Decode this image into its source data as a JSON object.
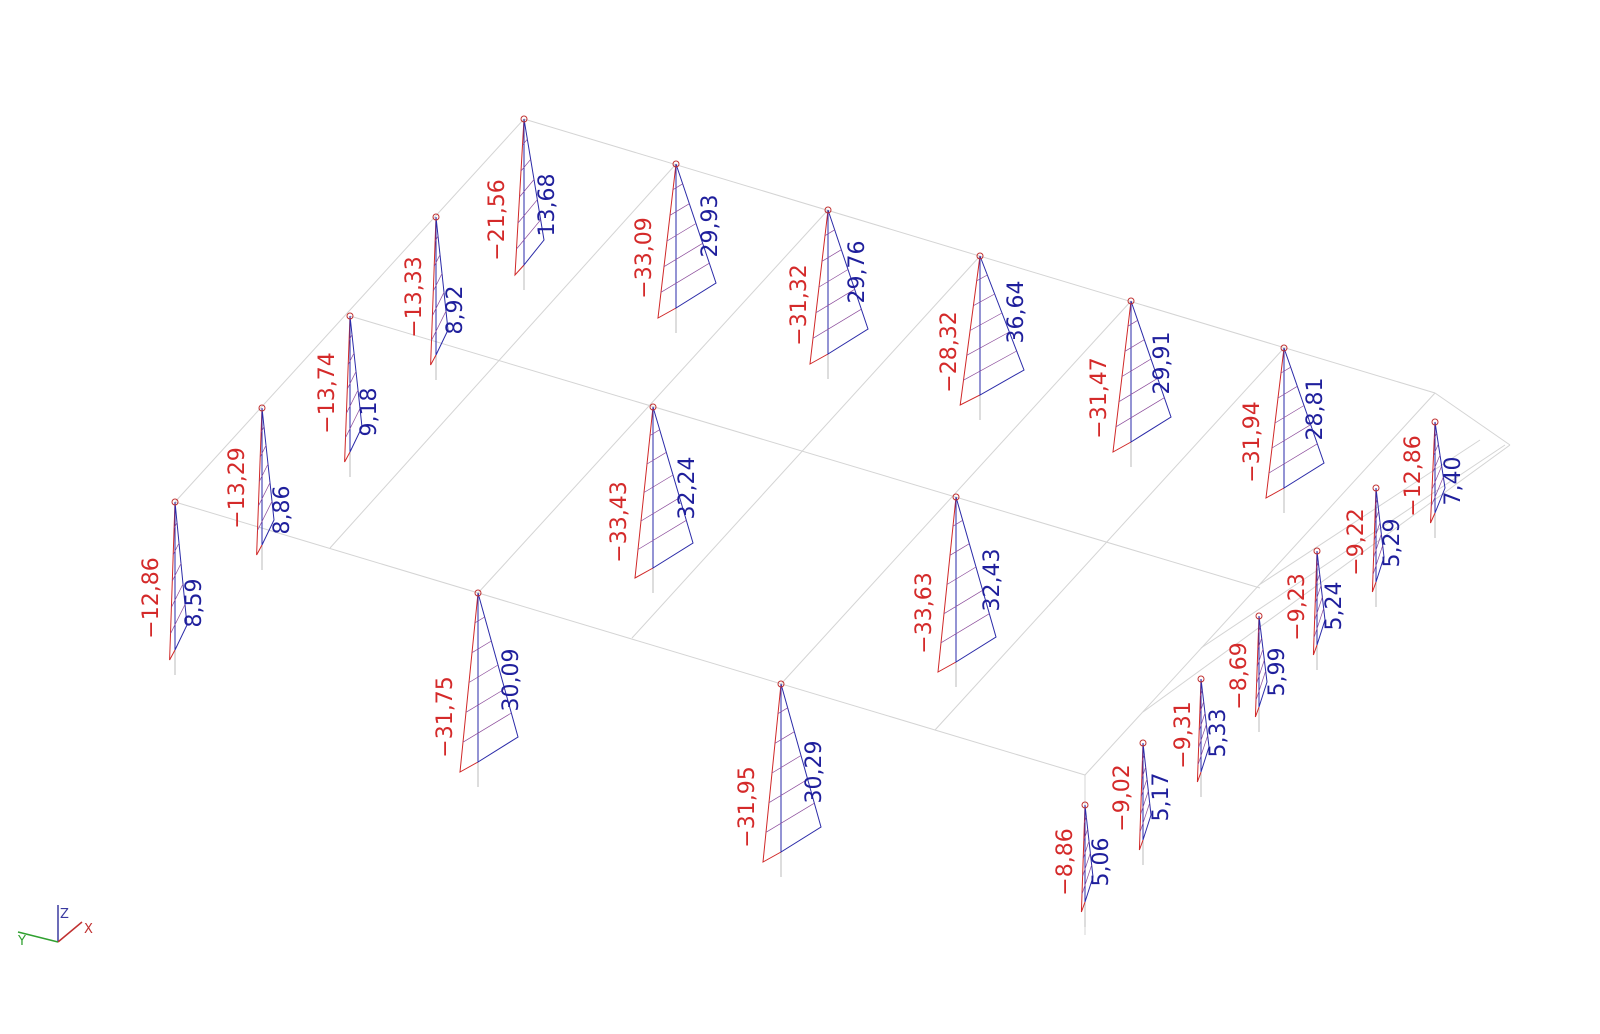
{
  "columns": [
    {
      "min": "−12,86",
      "max": "8,59"
    },
    {
      "min": "−13,29",
      "max": "8,86"
    },
    {
      "min": "−13,74",
      "max": "9,18"
    },
    {
      "min": "−13,33",
      "max": "8,92"
    },
    {
      "min": "−21,56",
      "max": "13,68"
    },
    {
      "min": "−33,09",
      "max": "29,93"
    },
    {
      "min": "−31,32",
      "max": "29,76"
    },
    {
      "min": "−28,32",
      "max": "36,64"
    },
    {
      "min": "−31,47",
      "max": "29,91"
    },
    {
      "min": "−31,94",
      "max": "28,81"
    },
    {
      "min": "−12,86",
      "max": "7,40"
    },
    {
      "min": "−33,43",
      "max": "32,24"
    },
    {
      "min": "−33,63",
      "max": "32,43"
    },
    {
      "min": "−31,75",
      "max": "30,09"
    },
    {
      "min": "−31,95",
      "max": "30,29"
    },
    {
      "min": "−8,86",
      "max": "5,06"
    },
    {
      "min": "−9,02",
      "max": "5,17"
    },
    {
      "min": "−9,31",
      "max": "5,33"
    },
    {
      "min": "−8,69",
      "max": "5,99"
    },
    {
      "min": "−9,23",
      "max": "5,24"
    },
    {
      "min": "−9,22",
      "max": "5,29"
    }
  ],
  "axes": {
    "z": "Z",
    "x": "X",
    "y": "Y"
  }
}
